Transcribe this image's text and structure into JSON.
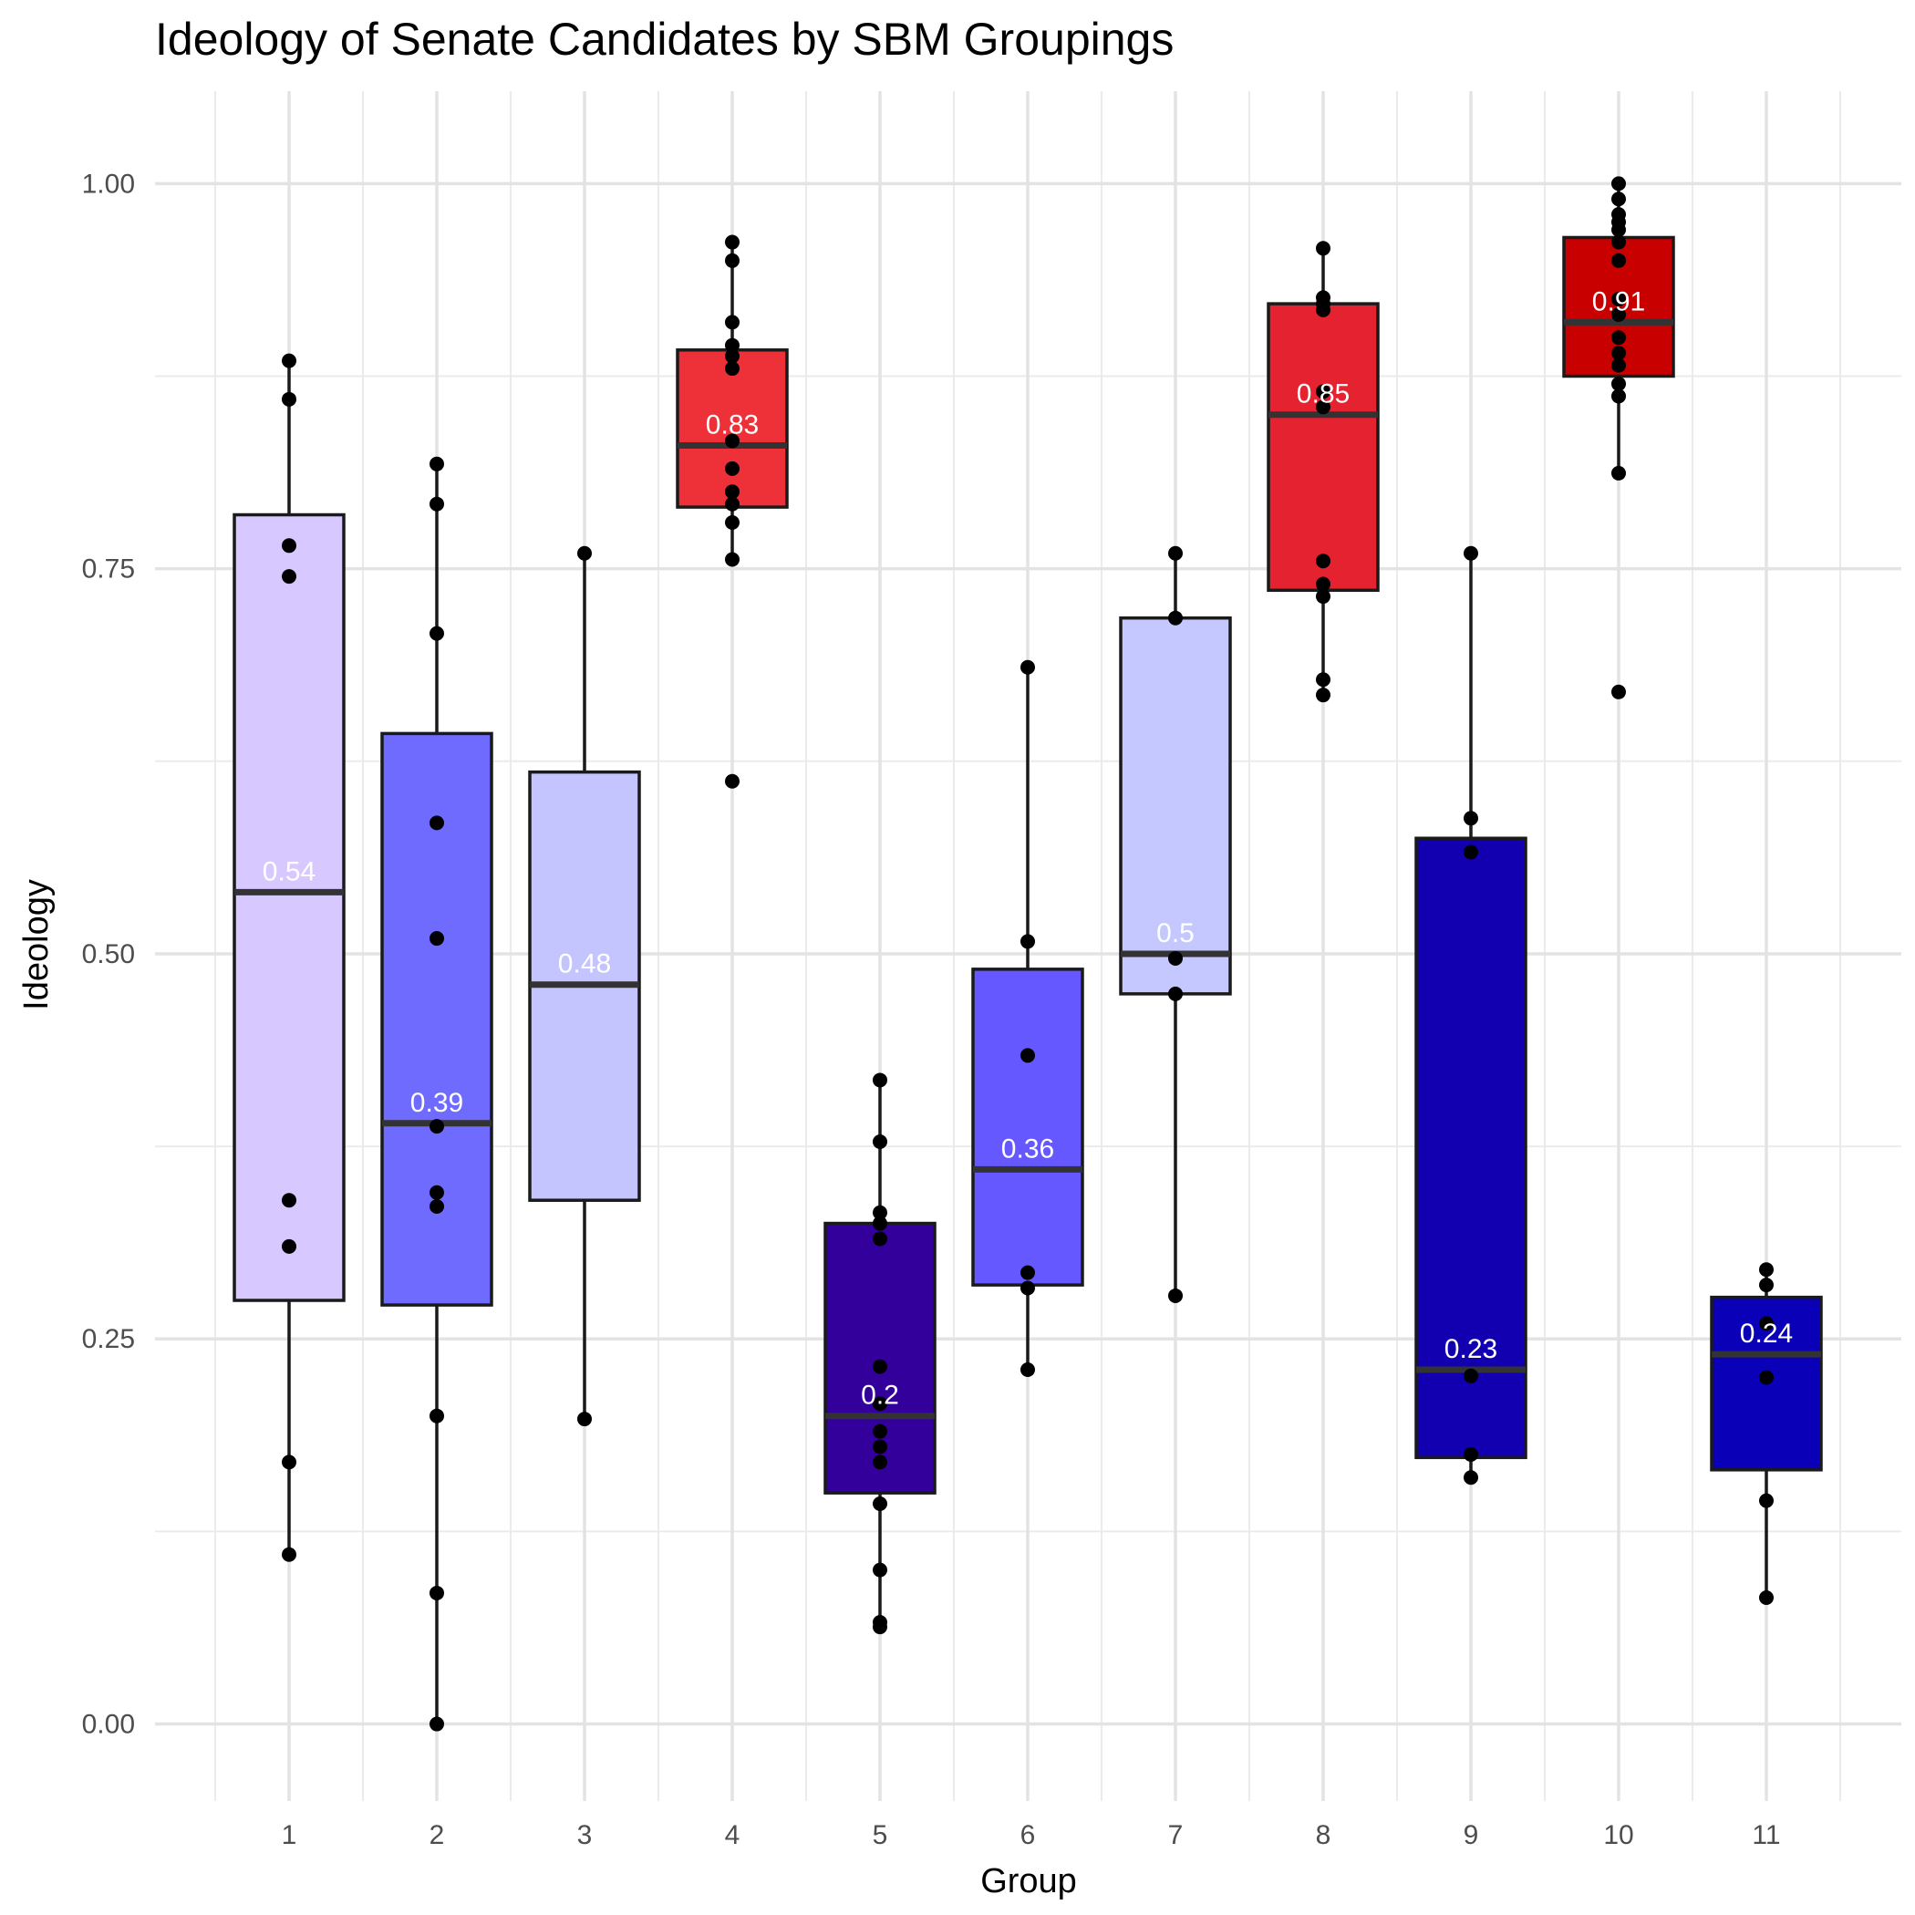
{
  "chart_data": {
    "type": "box",
    "title": "Ideology of Senate Candidates by SBM Groupings",
    "xlabel": "Group",
    "ylabel": "Ideology",
    "ylim": [
      -0.05,
      1.06
    ],
    "yticks": [
      "0.00",
      "0.25",
      "0.50",
      "0.75",
      "1.00"
    ],
    "ytick_values": [
      0,
      0.25,
      0.5,
      0.75,
      1.0
    ],
    "grid": true,
    "legend": "none",
    "categories": [
      "1",
      "2",
      "3",
      "4",
      "5",
      "6",
      "7",
      "8",
      "9",
      "10",
      "11"
    ],
    "groups": [
      {
        "group": "1",
        "color": "#d7c8ff",
        "q1": 0.275,
        "median": 0.54,
        "q3": 0.785,
        "whisker_low": 0.11,
        "whisker_high": 0.885,
        "median_label": "0.54",
        "points": [
          0.885,
          0.86,
          0.765,
          0.745,
          0.34,
          0.31,
          0.17,
          0.11
        ]
      },
      {
        "group": "2",
        "color": "#6f6bff",
        "q1": 0.272,
        "median": 0.39,
        "q3": 0.643,
        "whisker_low": 0.0,
        "whisker_high": 0.818,
        "median_label": "0.39",
        "points": [
          0.818,
          0.792,
          0.708,
          0.585,
          0.51,
          0.388,
          0.345,
          0.336,
          0.2,
          0.085,
          0.0
        ]
      },
      {
        "group": "3",
        "color": "#c4c4ff",
        "q1": 0.34,
        "median": 0.48,
        "q3": 0.618,
        "whisker_low": 0.198,
        "whisker_high": 0.76,
        "median_label": "0.48",
        "points": [
          0.76,
          0.198
        ]
      },
      {
        "group": "4",
        "color": "#ee3039",
        "q1": 0.79,
        "median": 0.83,
        "q3": 0.892,
        "whisker_low": 0.756,
        "whisker_high": 0.962,
        "median_label": "0.83",
        "points": [
          0.962,
          0.95,
          0.91,
          0.895,
          0.888,
          0.88,
          0.833,
          0.815,
          0.8,
          0.792,
          0.78,
          0.756,
          0.612
        ]
      },
      {
        "group": "5",
        "color": "#33009b",
        "q1": 0.15,
        "median": 0.2,
        "q3": 0.325,
        "whisker_low": 0.063,
        "whisker_high": 0.418,
        "median_label": "0.2",
        "points": [
          0.418,
          0.378,
          0.332,
          0.325,
          0.315,
          0.232,
          0.208,
          0.19,
          0.18,
          0.17,
          0.143,
          0.1,
          0.066,
          0.063
        ]
      },
      {
        "group": "6",
        "color": "#6558ff",
        "q1": 0.285,
        "median": 0.36,
        "q3": 0.49,
        "whisker_low": 0.23,
        "whisker_high": 0.686,
        "median_label": "0.36",
        "points": [
          0.686,
          0.508,
          0.434,
          0.293,
          0.283,
          0.23
        ]
      },
      {
        "group": "7",
        "color": "#c5c8ff",
        "q1": 0.474,
        "median": 0.5,
        "q3": 0.718,
        "whisker_low": 0.278,
        "whisker_high": 0.76,
        "median_label": "0.5",
        "points": [
          0.76,
          0.718,
          0.497,
          0.474,
          0.278
        ]
      },
      {
        "group": "8",
        "color": "#e42230",
        "q1": 0.736,
        "median": 0.85,
        "q3": 0.922,
        "whisker_low": 0.668,
        "whisker_high": 0.958,
        "median_label": "0.85",
        "points": [
          0.958,
          0.926,
          0.922,
          0.918,
          0.865,
          0.855,
          0.755,
          0.74,
          0.732,
          0.678,
          0.668
        ]
      },
      {
        "group": "9",
        "color": "#1200b0",
        "q1": 0.173,
        "median": 0.23,
        "q3": 0.575,
        "whisker_low": 0.16,
        "whisker_high": 0.76,
        "median_label": "0.23",
        "points": [
          0.76,
          0.588,
          0.566,
          0.226,
          0.175,
          0.16
        ]
      },
      {
        "group": "10",
        "color": "#c80000",
        "q1": 0.875,
        "median": 0.91,
        "q3": 0.965,
        "whisker_low": 0.812,
        "whisker_high": 1.0,
        "median_label": "0.91",
        "points": [
          1.0,
          0.99,
          0.98,
          0.975,
          0.97,
          0.962,
          0.95,
          0.925,
          0.915,
          0.9,
          0.89,
          0.882,
          0.87,
          0.862,
          0.812,
          0.67
        ]
      },
      {
        "group": "11",
        "color": "#0a00b8",
        "q1": 0.165,
        "median": 0.24,
        "q3": 0.277,
        "whisker_low": 0.082,
        "whisker_high": 0.295,
        "median_label": "0.24",
        "points": [
          0.295,
          0.285,
          0.26,
          0.225,
          0.145,
          0.082
        ]
      }
    ]
  }
}
